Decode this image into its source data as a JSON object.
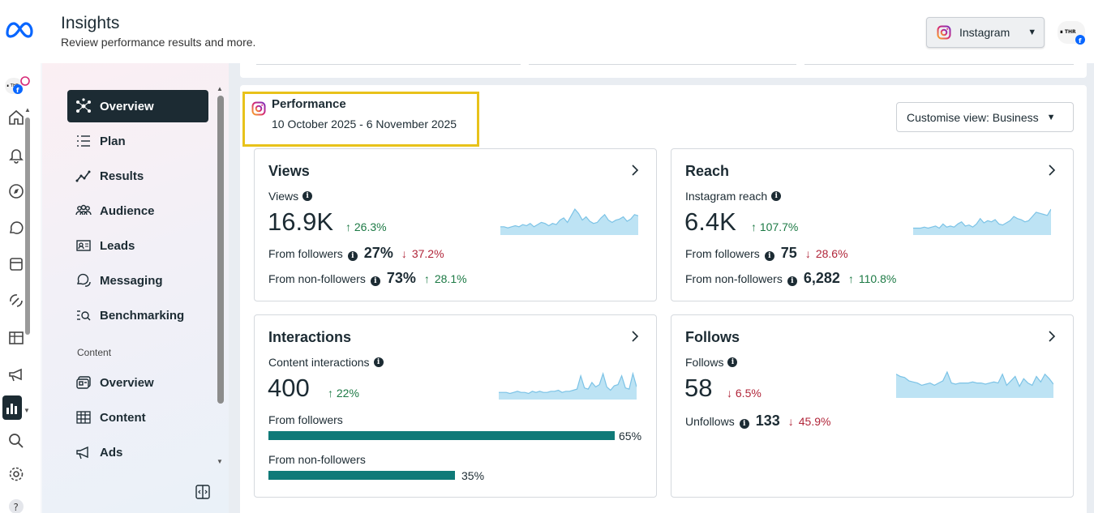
{
  "header": {
    "title": "Insights",
    "subtitle": "Review performance results and more.",
    "platform": "Instagram"
  },
  "nav": {
    "items": [
      {
        "label": "Overview",
        "icon": "overview-icon"
      },
      {
        "label": "Plan",
        "icon": "plan-icon"
      },
      {
        "label": "Results",
        "icon": "results-icon"
      },
      {
        "label": "Audience",
        "icon": "audience-icon"
      },
      {
        "label": "Leads",
        "icon": "leads-icon"
      },
      {
        "label": "Messaging",
        "icon": "messaging-icon"
      },
      {
        "label": "Benchmarking",
        "icon": "benchmarking-icon"
      }
    ],
    "section_label": "Content",
    "content_items": [
      {
        "label": "Overview",
        "icon": "content-overview-icon"
      },
      {
        "label": "Content",
        "icon": "content-table-icon"
      },
      {
        "label": "Ads",
        "icon": "ads-icon"
      }
    ]
  },
  "performance": {
    "title": "Performance",
    "date_range": "10 October 2025 - 6 November 2025",
    "customise_label": "Customise view: Business"
  },
  "cards": {
    "views": {
      "title": "Views",
      "metric_label": "Views",
      "value": "16.9K",
      "delta": "26.3%",
      "followers_label": "From followers",
      "followers_value": "27%",
      "followers_delta": "37.2%",
      "nonfollowers_label": "From non-followers",
      "nonfollowers_value": "73%",
      "nonfollowers_delta": "28.1%",
      "sparkline": [
        6,
        6,
        5,
        6,
        7,
        6,
        8,
        7,
        9,
        6,
        8,
        10,
        9,
        7,
        9,
        8,
        12,
        14,
        10,
        16,
        22,
        18,
        12,
        15,
        11,
        9,
        10,
        14,
        17,
        12,
        10,
        12,
        13,
        15,
        11,
        13,
        17,
        16
      ]
    },
    "reach": {
      "title": "Reach",
      "metric_label": "Instagram reach",
      "value": "6.4K",
      "delta": "107.7%",
      "followers_label": "From followers",
      "followers_value": "75",
      "followers_delta": "28.6%",
      "nonfollowers_label": "From non-followers",
      "nonfollowers_value": "6,282",
      "nonfollowers_delta": "110.8%",
      "sparkline": [
        5,
        5,
        5,
        6,
        5,
        6,
        7,
        5,
        9,
        6,
        7,
        6,
        9,
        11,
        7,
        8,
        6,
        9,
        14,
        10,
        12,
        11,
        13,
        9,
        8,
        10,
        12,
        16,
        14,
        13,
        11,
        12,
        16,
        20,
        19,
        18,
        17,
        23
      ]
    },
    "interactions": {
      "title": "Interactions",
      "metric_label": "Content interactions",
      "value": "400",
      "delta": "22%",
      "followers_label": "From followers",
      "followers_pct": 65,
      "followers_text": "65%",
      "nonfollowers_label": "From non-followers",
      "nonfollowers_pct": 35,
      "nonfollowers_text": "35%",
      "sparkline": [
        5,
        5,
        5,
        4,
        5,
        6,
        5,
        5,
        4,
        6,
        5,
        6,
        5,
        5,
        6,
        6,
        7,
        5,
        6,
        6,
        7,
        8,
        20,
        9,
        8,
        14,
        10,
        12,
        22,
        10,
        7,
        11,
        12,
        20,
        9,
        8,
        22,
        10
      ]
    },
    "follows": {
      "title": "Follows",
      "metric_label": "Follows",
      "value": "58",
      "delta": "6.5%",
      "unfollows_label": "Unfollows",
      "unfollows_value": "133",
      "unfollows_delta": "45.9%",
      "sparkline": [
        20,
        18,
        17,
        14,
        13,
        12,
        10,
        11,
        12,
        10,
        12,
        14,
        22,
        12,
        11,
        12,
        12,
        12,
        13,
        12,
        12,
        11,
        12,
        13,
        12,
        20,
        10,
        14,
        18,
        9,
        16,
        12,
        10,
        18,
        13,
        20,
        16,
        11
      ]
    }
  },
  "colors": {
    "accent_dark": "#1c2b33",
    "up": "#1d7a45",
    "down": "#b1263a",
    "bar": "#0f7a78",
    "spark_fill": "#bde3f4",
    "spark_line": "#7cc3e6",
    "highlight": "#e8c21a"
  }
}
